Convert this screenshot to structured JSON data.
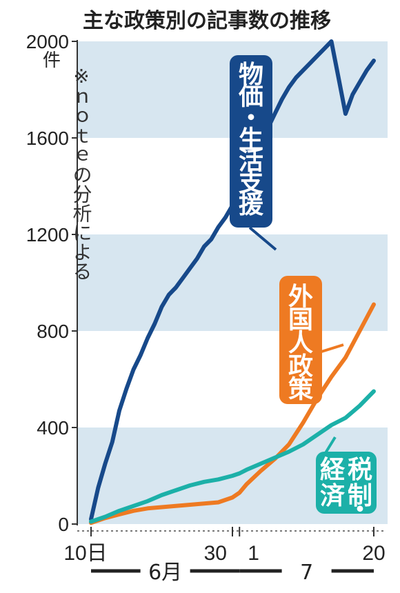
{
  "chart_data": {
    "type": "line",
    "title": "主な政策別の記事数の推移",
    "y_unit": "件",
    "note": "※ｎｏｔｅの分析による",
    "ylim": [
      0,
      2000
    ],
    "y_ticks": [
      "0",
      "400",
      "800",
      "1200",
      "1600",
      "2000"
    ],
    "x_range": [
      0,
      40
    ],
    "x_tick_labels": [
      {
        "x": 0,
        "label": "10日"
      },
      {
        "x": 20,
        "label": "30"
      },
      {
        "x": 21,
        "label": "1"
      },
      {
        "x": 40,
        "label": "20"
      }
    ],
    "months": [
      {
        "label": "6月",
        "from": 0,
        "to": 21
      },
      {
        "label": "7",
        "from": 21,
        "to": 40
      }
    ],
    "grid_bands": true,
    "series": [
      {
        "name": "物価・生活支援",
        "color": "#17498a",
        "label_chars": [
          "物",
          "価",
          "・",
          "生",
          "活",
          "支",
          "援"
        ],
        "points": [
          [
            0,
            20
          ],
          [
            1,
            150
          ],
          [
            2,
            250
          ],
          [
            3,
            340
          ],
          [
            4,
            470
          ],
          [
            5,
            560
          ],
          [
            6,
            640
          ],
          [
            7,
            700
          ],
          [
            8,
            770
          ],
          [
            9,
            830
          ],
          [
            10,
            900
          ],
          [
            11,
            950
          ],
          [
            12,
            980
          ],
          [
            13,
            1020
          ],
          [
            14,
            1060
          ],
          [
            15,
            1100
          ],
          [
            16,
            1150
          ],
          [
            17,
            1180
          ],
          [
            18,
            1230
          ],
          [
            19,
            1270
          ],
          [
            20,
            1320
          ],
          [
            21,
            1360
          ],
          [
            22,
            1420
          ],
          [
            23,
            1510
          ],
          [
            24,
            1580
          ],
          [
            25,
            1640
          ],
          [
            26,
            1700
          ],
          [
            27,
            1760
          ],
          [
            28,
            1810
          ],
          [
            29,
            1850
          ],
          [
            30,
            1880
          ],
          [
            31,
            1910
          ],
          [
            32,
            1940
          ],
          [
            33,
            1970
          ],
          [
            34,
            2000
          ],
          [
            35,
            1850
          ],
          [
            36,
            1700
          ],
          [
            37,
            1780
          ],
          [
            38,
            1830
          ],
          [
            39,
            1880
          ],
          [
            40,
            1920
          ]
        ]
      },
      {
        "name": "外国人政策",
        "color": "#ee7a22",
        "label_chars": [
          "外",
          "国",
          "人",
          "政",
          "策"
        ],
        "points": [
          [
            0,
            5
          ],
          [
            2,
            25
          ],
          [
            4,
            40
          ],
          [
            6,
            55
          ],
          [
            8,
            65
          ],
          [
            10,
            70
          ],
          [
            12,
            75
          ],
          [
            14,
            80
          ],
          [
            16,
            85
          ],
          [
            18,
            90
          ],
          [
            20,
            110
          ],
          [
            21,
            130
          ],
          [
            22,
            165
          ],
          [
            24,
            220
          ],
          [
            26,
            270
          ],
          [
            28,
            330
          ],
          [
            30,
            420
          ],
          [
            32,
            520
          ],
          [
            34,
            610
          ],
          [
            36,
            690
          ],
          [
            38,
            800
          ],
          [
            40,
            910
          ]
        ]
      },
      {
        "name": "経済・税制",
        "color": "#1cb0a8",
        "label_chars": [
          "経",
          "税",
          "済",
          "制",
          "・"
        ],
        "points": [
          [
            0,
            10
          ],
          [
            2,
            30
          ],
          [
            4,
            55
          ],
          [
            6,
            75
          ],
          [
            8,
            95
          ],
          [
            10,
            120
          ],
          [
            12,
            140
          ],
          [
            14,
            160
          ],
          [
            16,
            175
          ],
          [
            18,
            185
          ],
          [
            20,
            200
          ],
          [
            21,
            210
          ],
          [
            22,
            225
          ],
          [
            24,
            250
          ],
          [
            26,
            275
          ],
          [
            28,
            300
          ],
          [
            30,
            330
          ],
          [
            32,
            370
          ],
          [
            34,
            410
          ],
          [
            36,
            440
          ],
          [
            38,
            490
          ],
          [
            40,
            550
          ]
        ]
      }
    ]
  }
}
